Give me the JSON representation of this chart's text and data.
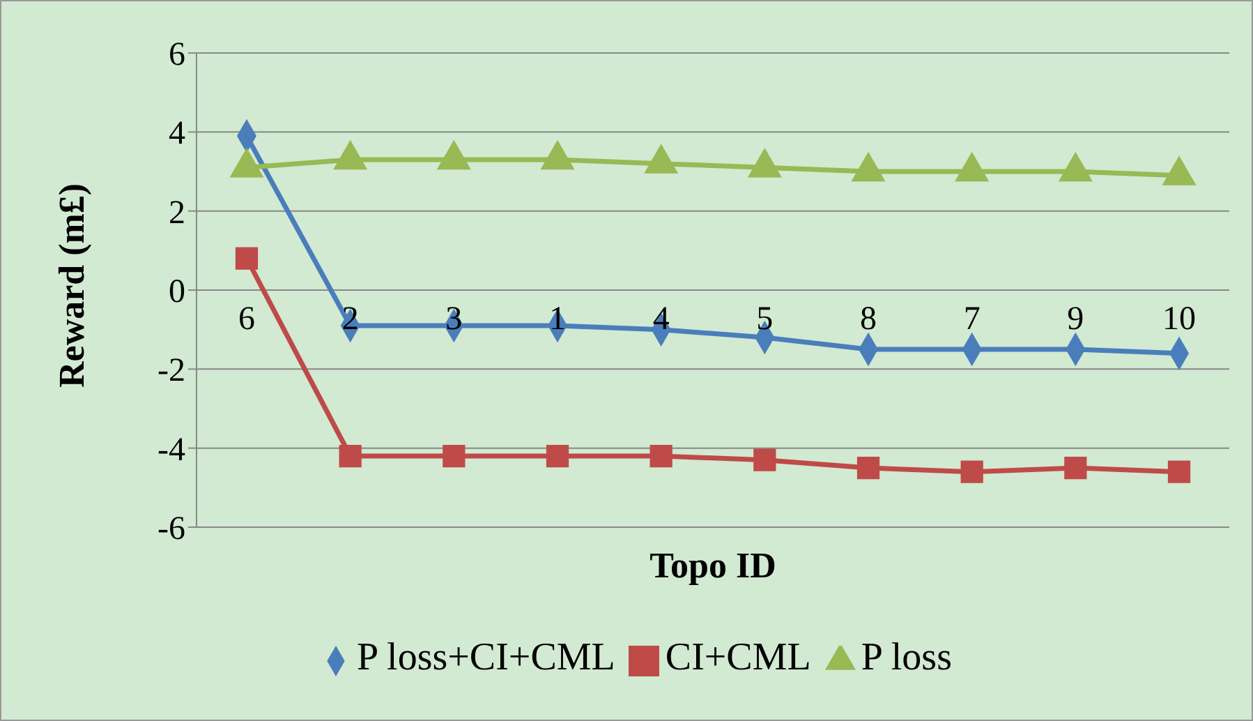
{
  "chart_data": {
    "type": "line",
    "xlabel": "Topo ID",
    "ylabel": "Reward (m£)",
    "categories": [
      "6",
      "2",
      "3",
      "1",
      "4",
      "5",
      "8",
      "7",
      "9",
      "10"
    ],
    "series": [
      {
        "name": "P loss+CI+CML",
        "color": "#4a7ebb",
        "marker": "diamond",
        "values": [
          3.9,
          -0.9,
          -0.9,
          -0.9,
          -1.0,
          -1.2,
          -1.5,
          -1.5,
          -1.5,
          -1.6
        ]
      },
      {
        "name": "CI+CML",
        "color": "#be4b48",
        "marker": "square",
        "values": [
          0.8,
          -4.2,
          -4.2,
          -4.2,
          -4.2,
          -4.3,
          -4.5,
          -4.6,
          -4.5,
          -4.6
        ]
      },
      {
        "name": "P loss",
        "color": "#98b954",
        "marker": "triangle",
        "values": [
          3.1,
          3.3,
          3.3,
          3.3,
          3.2,
          3.1,
          3.0,
          3.0,
          3.0,
          2.9
        ]
      }
    ],
    "ylim": [
      -6,
      6
    ],
    "yticks": [
      -6,
      -4,
      -2,
      0,
      2,
      4,
      6
    ],
    "grid": "y",
    "legend": "bottom"
  }
}
